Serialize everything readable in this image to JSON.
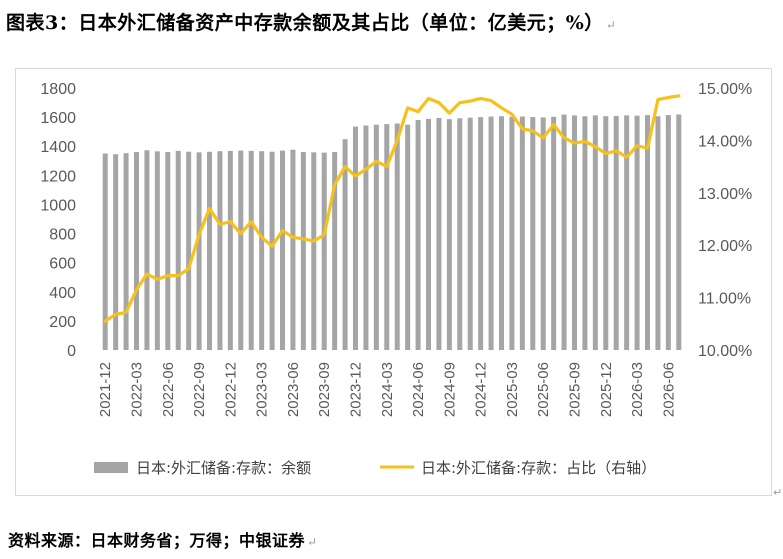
{
  "figure": {
    "title": "图表3：日本外汇储备资产中存款余额及其占比（单位：亿美元；%）",
    "source": "资料来源：日本财务省；万得；中银证券"
  },
  "chart_data": {
    "type": "bar+line",
    "bar_color": "#a5a5a5",
    "line_color": "#f5c11a",
    "y_left": {
      "min": 0,
      "max": 1800,
      "step": 200
    },
    "y_right": {
      "min": 10,
      "max": 15,
      "step": 1,
      "format": "percent_2dp"
    },
    "x_tick_labels": [
      "2021-12",
      "2022-03",
      "2022-06",
      "2022-09",
      "2022-12",
      "2023-03",
      "2023-06",
      "2023-09",
      "2023-12",
      "2024-03",
      "2024-06",
      "2024-09",
      "2024-12",
      "2025-03",
      "2025-06",
      "2025-09",
      "2025-12",
      "2026-03",
      "2026-06"
    ],
    "months": [
      "2021-12",
      "2022-01",
      "2022-02",
      "2022-03",
      "2022-04",
      "2022-05",
      "2022-06",
      "2022-07",
      "2022-08",
      "2022-09",
      "2022-10",
      "2022-11",
      "2022-12",
      "2023-01",
      "2023-02",
      "2023-03",
      "2023-04",
      "2023-05",
      "2023-06",
      "2023-07",
      "2023-08",
      "2023-09",
      "2023-10",
      "2023-11",
      "2023-12",
      "2024-01",
      "2024-02",
      "2024-03",
      "2024-04",
      "2024-05",
      "2024-06",
      "2024-07",
      "2024-08",
      "2024-09",
      "2024-10",
      "2024-11",
      "2024-12",
      "2025-01",
      "2025-02",
      "2025-03",
      "2025-04",
      "2025-05",
      "2025-06",
      "2025-07",
      "2025-08",
      "2025-09",
      "2025-10",
      "2025-11",
      "2025-12",
      "2026-01",
      "2026-02",
      "2026-03",
      "2026-04",
      "2026-05",
      "2026-06",
      "2026-07"
    ],
    "series": [
      {
        "name": "日本:外汇储备:存款：余额",
        "axis": "left",
        "type": "bar",
        "values": [
          1350,
          1345,
          1352,
          1360,
          1372,
          1365,
          1360,
          1368,
          1362,
          1358,
          1362,
          1366,
          1368,
          1370,
          1368,
          1366,
          1362,
          1370,
          1376,
          1360,
          1358,
          1356,
          1360,
          1448,
          1535,
          1542,
          1548,
          1552,
          1556,
          1548,
          1580,
          1588,
          1594,
          1586,
          1592,
          1596,
          1600,
          1604,
          1606,
          1602,
          1604,
          1600,
          1598,
          1602,
          1618,
          1612,
          1606,
          1612,
          1606,
          1608,
          1612,
          1610,
          1614,
          1606,
          1614,
          1618
        ]
      },
      {
        "name": "日本:外汇储备:存款：占比（右轴）",
        "axis": "right",
        "type": "line",
        "values": [
          10.55,
          10.68,
          10.72,
          11.15,
          11.45,
          11.35,
          11.42,
          11.42,
          11.55,
          12.2,
          12.7,
          12.4,
          12.45,
          12.22,
          12.45,
          12.15,
          11.98,
          12.28,
          12.15,
          12.12,
          12.08,
          12.2,
          13.15,
          13.5,
          13.32,
          13.45,
          13.6,
          13.5,
          14.0,
          14.62,
          14.55,
          14.8,
          14.72,
          14.52,
          14.72,
          14.75,
          14.8,
          14.76,
          14.62,
          14.5,
          14.22,
          14.18,
          14.05,
          14.3,
          14.05,
          13.95,
          13.98,
          13.88,
          13.75,
          13.8,
          13.68,
          13.9,
          13.85,
          14.78,
          14.82,
          14.85
        ]
      }
    ]
  }
}
